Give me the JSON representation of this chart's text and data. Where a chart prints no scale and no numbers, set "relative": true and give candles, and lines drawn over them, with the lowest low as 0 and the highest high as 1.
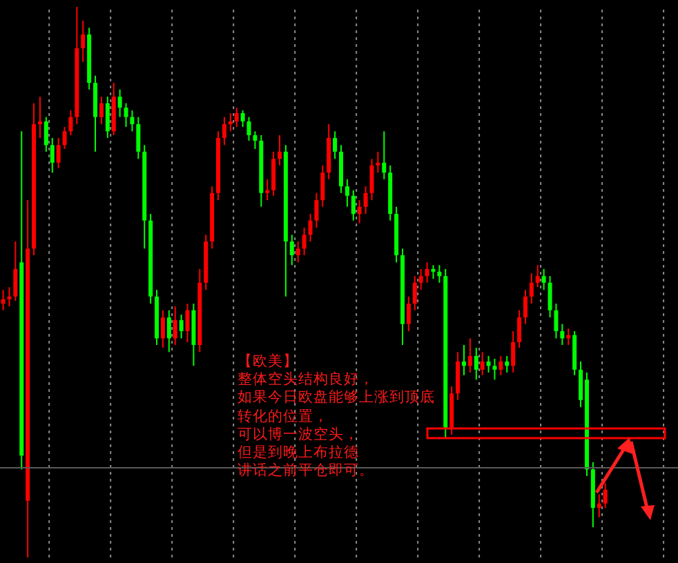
{
  "chart_data": {
    "type": "candlestick",
    "relative": true,
    "grid": "x",
    "categories": [
      null,
      null,
      null,
      null,
      null,
      null,
      null,
      null,
      null,
      null,
      null,
      null,
      null,
      null,
      null,
      null,
      null,
      null,
      null,
      null,
      null,
      null,
      null,
      null,
      null,
      null,
      null,
      null,
      null,
      null,
      null,
      null,
      null,
      null,
      null,
      null,
      null,
      null,
      null,
      null,
      null,
      null,
      null,
      null,
      null,
      null,
      null,
      null,
      null,
      null,
      null,
      null,
      null,
      null,
      null,
      null,
      null,
      null,
      null,
      null,
      null,
      null,
      null,
      null,
      null,
      null,
      null,
      null,
      null,
      null,
      null,
      null,
      null,
      null,
      null,
      null,
      null,
      null,
      null,
      null,
      null,
      null,
      null,
      null,
      null,
      null,
      null,
      null,
      null,
      null,
      null,
      null,
      null,
      null,
      null,
      null,
      null,
      null,
      null
    ],
    "ohlc": [
      [
        0.461,
        0.486,
        0.449,
        0.469
      ],
      [
        0.469,
        0.491,
        0.456,
        0.474
      ],
      [
        0.474,
        0.574,
        0.466,
        0.524
      ],
      [
        0.536,
        0.774,
        0.16,
        0.185
      ],
      [
        0.103,
        0.649,
        0,
        0.561
      ],
      [
        0.561,
        0.825,
        0.549,
        0.787
      ],
      [
        0.787,
        0.837,
        0.762,
        0.792
      ],
      [
        0.792,
        0.8,
        0.737,
        0.749
      ],
      [
        0.749,
        0.762,
        0.699,
        0.717
      ],
      [
        0.717,
        0.762,
        0.707,
        0.749
      ],
      [
        0.749,
        0.782,
        0.742,
        0.774
      ],
      [
        0.774,
        0.812,
        0.767,
        0.8
      ],
      [
        0.8,
        1,
        0.787,
        0.925
      ],
      [
        0.925,
        0.975,
        0.9,
        0.95
      ],
      [
        0.95,
        0.962,
        0.85,
        0.862
      ],
      [
        0.862,
        0.875,
        0.737,
        0.8
      ],
      [
        0.8,
        0.837,
        0.787,
        0.825
      ],
      [
        0.825,
        0.837,
        0.762,
        0.774
      ],
      [
        0.774,
        0.862,
        0.767,
        0.837
      ],
      [
        0.837,
        0.85,
        0.8,
        0.817
      ],
      [
        0.817,
        0.825,
        0.782,
        0.8
      ],
      [
        0.8,
        0.812,
        0.774,
        0.787
      ],
      [
        0.787,
        0.8,
        0.724,
        0.737
      ],
      [
        0.737,
        0.749,
        0.561,
        0.612
      ],
      [
        0.612,
        0.624,
        0.461,
        0.474
      ],
      [
        0.474,
        0.486,
        0.386,
        0.398
      ],
      [
        0.398,
        0.449,
        0.381,
        0.436
      ],
      [
        0.436,
        0.449,
        0.373,
        0.398
      ],
      [
        0.398,
        0.456,
        0.386,
        0.431
      ],
      [
        0.431,
        0.441,
        0.398,
        0.411
      ],
      [
        0.411,
        0.461,
        0.391,
        0.449
      ],
      [
        0.449,
        0.461,
        0.348,
        0.386
      ],
      [
        0.386,
        0.524,
        0.373,
        0.499
      ],
      [
        0.499,
        0.586,
        0.486,
        0.574
      ],
      [
        0.574,
        0.674,
        0.561,
        0.662
      ],
      [
        0.662,
        0.774,
        0.649,
        0.762
      ],
      [
        0.762,
        0.8,
        0.749,
        0.787
      ],
      [
        0.787,
        0.807,
        0.774,
        0.792
      ],
      [
        0.792,
        0.817,
        0.782,
        0.807
      ],
      [
        0.807,
        0.812,
        0.782,
        0.792
      ],
      [
        0.792,
        0.8,
        0.757,
        0.767
      ],
      [
        0.767,
        0.774,
        0.742,
        0.757
      ],
      [
        0.757,
        0.767,
        0.637,
        0.662
      ],
      [
        0.662,
        0.687,
        0.649,
        0.667
      ],
      [
        0.667,
        0.737,
        0.657,
        0.724
      ],
      [
        0.724,
        0.767,
        0.712,
        0.737
      ],
      [
        0.737,
        0.749,
        0.474,
        0.574
      ],
      [
        0.574,
        0.586,
        0.531,
        0.549
      ],
      [
        0.549,
        0.574,
        0.536,
        0.561
      ],
      [
        0.561,
        0.599,
        0.549,
        0.586
      ],
      [
        0.586,
        0.624,
        0.574,
        0.612
      ],
      [
        0.612,
        0.662,
        0.599,
        0.649
      ],
      [
        0.649,
        0.712,
        0.637,
        0.699
      ],
      [
        0.699,
        0.787,
        0.687,
        0.762
      ],
      [
        0.762,
        0.774,
        0.724,
        0.737
      ],
      [
        0.737,
        0.749,
        0.662,
        0.674
      ],
      [
        0.674,
        0.687,
        0.637,
        0.657
      ],
      [
        0.657,
        0.667,
        0.612,
        0.624
      ],
      [
        0.624,
        0.649,
        0.607,
        0.637
      ],
      [
        0.637,
        0.674,
        0.624,
        0.662
      ],
      [
        0.662,
        0.724,
        0.649,
        0.712
      ],
      [
        0.712,
        0.737,
        0.699,
        0.717
      ],
      [
        0.717,
        0.774,
        0.687,
        0.699
      ],
      [
        0.699,
        0.712,
        0.612,
        0.624
      ],
      [
        0.624,
        0.637,
        0.536,
        0.549
      ],
      [
        0.549,
        0.561,
        0.386,
        0.424
      ],
      [
        0.424,
        0.474,
        0.411,
        0.461
      ],
      [
        0.461,
        0.511,
        0.449,
        0.499
      ],
      [
        0.499,
        0.524,
        0.486,
        0.511
      ],
      [
        0.511,
        0.536,
        0.499,
        0.524
      ],
      [
        0.524,
        0.531,
        0.506,
        0.519
      ],
      [
        0.519,
        0.531,
        0.499,
        0.511
      ],
      [
        0.511,
        0.524,
        0.216,
        0.236
      ],
      [
        0.236,
        0.311,
        0.223,
        0.298
      ],
      [
        0.298,
        0.373,
        0.286,
        0.356
      ],
      [
        0.356,
        0.386,
        0.331,
        0.348
      ],
      [
        0.348,
        0.398,
        0.336,
        0.366
      ],
      [
        0.366,
        0.381,
        0.323,
        0.341
      ],
      [
        0.341,
        0.373,
        0.331,
        0.356
      ],
      [
        0.356,
        0.366,
        0.336,
        0.348
      ],
      [
        0.348,
        0.361,
        0.323,
        0.341
      ],
      [
        0.341,
        0.366,
        0.331,
        0.356
      ],
      [
        0.356,
        0.366,
        0.336,
        0.348
      ],
      [
        0.348,
        0.411,
        0.336,
        0.391
      ],
      [
        0.391,
        0.449,
        0.381,
        0.436
      ],
      [
        0.436,
        0.486,
        0.424,
        0.474
      ],
      [
        0.474,
        0.516,
        0.461,
        0.499
      ],
      [
        0.499,
        0.531,
        0.491,
        0.511
      ],
      [
        0.511,
        0.524,
        0.486,
        0.499
      ],
      [
        0.499,
        0.511,
        0.436,
        0.449
      ],
      [
        0.449,
        0.461,
        0.398,
        0.411
      ],
      [
        0.411,
        0.424,
        0.386,
        0.398
      ],
      [
        0.398,
        0.416,
        0.386,
        0.404
      ],
      [
        0.404,
        0.411,
        0.331,
        0.341
      ],
      [
        0.341,
        0.356,
        0.273,
        0.286
      ],
      [
        0.323,
        0.336,
        0.148,
        0.16
      ],
      [
        0.16,
        0.173,
        0.055,
        0.09
      ],
      [
        0.09,
        0.115,
        0.073,
        0.098
      ],
      [
        0.098,
        0.135,
        0.09,
        0.123
      ]
    ],
    "colors": [
      "#ff0000",
      "#ff0000",
      "#ff0000",
      "#00ff00",
      "#ff0000",
      "#ff0000",
      "#ff0000",
      "#00ff00",
      "#00ff00",
      "#ff0000",
      "#ff0000",
      "#ff0000",
      "#ff0000",
      "#ff0000",
      "#00ff00",
      "#00ff00",
      "#ff0000",
      "#00ff00",
      "#ff0000",
      "#00ff00",
      "#00ff00",
      "#00ff00",
      "#00ff00",
      "#00ff00",
      "#00ff00",
      "#00ff00",
      "#ff0000",
      "#00ff00",
      "#ff0000",
      "#00ff00",
      "#ff0000",
      "#00ff00",
      "#ff0000",
      "#ff0000",
      "#ff0000",
      "#ff0000",
      "#ff0000",
      "#ff0000",
      "#ff0000",
      "#00ff00",
      "#00ff00",
      "#00ff00",
      "#00ff00",
      "#ff0000",
      "#ff0000",
      "#ff0000",
      "#00ff00",
      "#00ff00",
      "#ff0000",
      "#ff0000",
      "#ff0000",
      "#ff0000",
      "#ff0000",
      "#ff0000",
      "#00ff00",
      "#00ff00",
      "#00ff00",
      "#00ff00",
      "#ff0000",
      "#ff0000",
      "#ff0000",
      "#ff0000",
      "#00ff00",
      "#00ff00",
      "#00ff00",
      "#00ff00",
      "#ff0000",
      "#ff0000",
      "#ff0000",
      "#ff0000",
      "#00ff00",
      "#00ff00",
      "#00ff00",
      "#ff0000",
      "#ff0000",
      "#00ff00",
      "#ff0000",
      "#00ff00",
      "#ff0000",
      "#00ff00",
      "#00ff00",
      "#ff0000",
      "#00ff00",
      "#ff0000",
      "#ff0000",
      "#ff0000",
      "#ff0000",
      "#ff0000",
      "#00ff00",
      "#00ff00",
      "#00ff00",
      "#00ff00",
      "#ff0000",
      "#00ff00",
      "#00ff00",
      "#00ff00",
      "#00ff00",
      "#ff0000",
      "#ff0000"
    ],
    "ref_lines": [
      {
        "axis": "y",
        "value": 0.163,
        "color": "#5a5a5a"
      }
    ],
    "annotations": [
      "【欧美】",
      "整体空头结构良好，",
      "如果今日欧盘能够上涨到顶底",
      "转化的位置，",
      "可以博一波空头，",
      "但是到晚上布拉德",
      "讲话之前平仓即可。"
    ]
  }
}
